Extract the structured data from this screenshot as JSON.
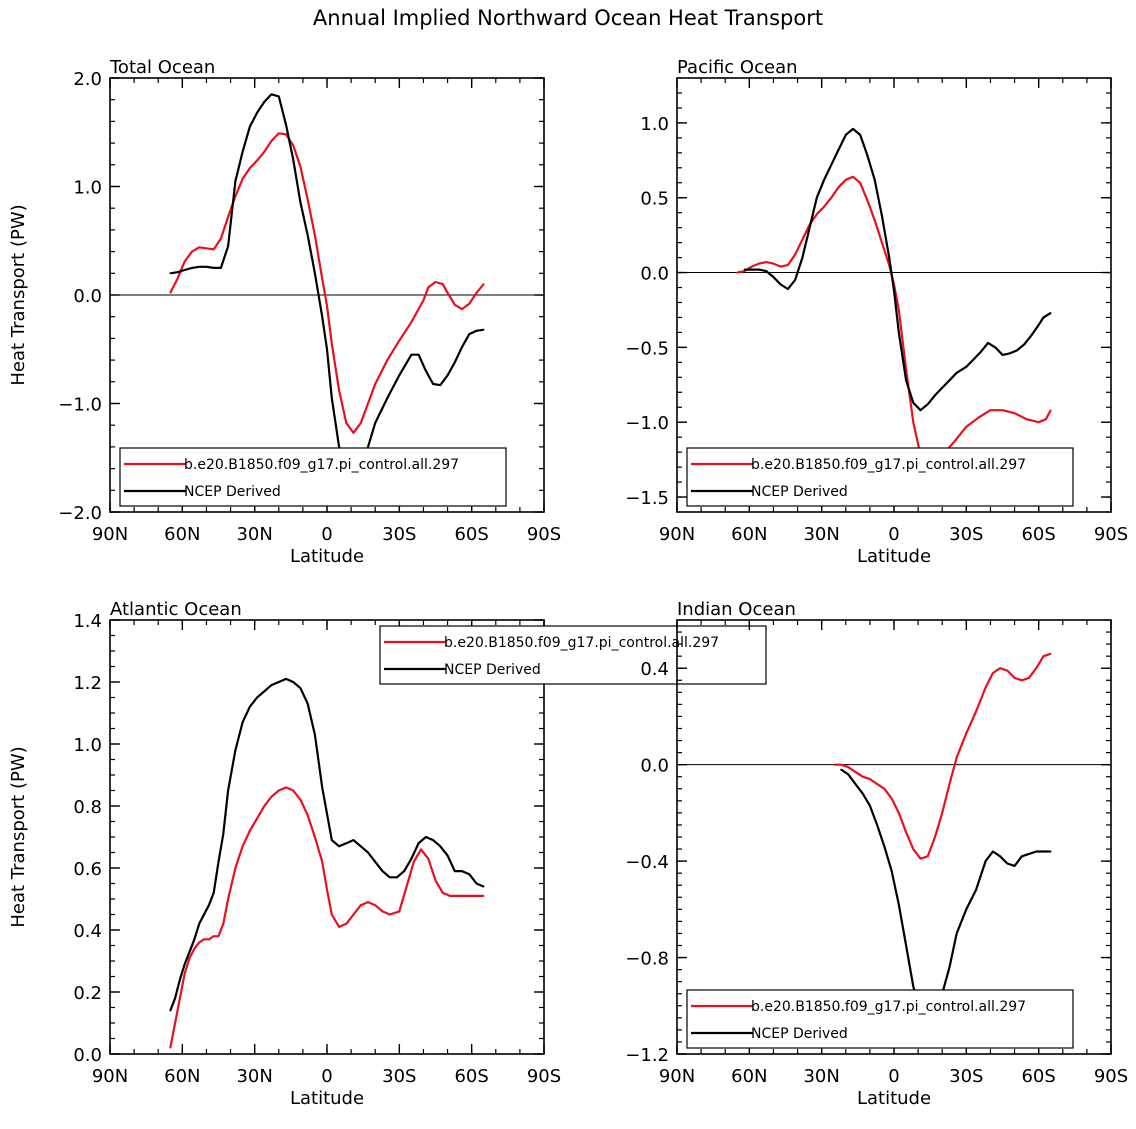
{
  "title": "Annual Implied Northward Ocean Heat Transport",
  "colors": {
    "model": "#e8101e",
    "ncep": "#000000",
    "frame": "#000000"
  },
  "chart_data": [
    {
      "type": "line",
      "panel_title": "Total Ocean",
      "xlabel": "Latitude",
      "ylabel": "Heat Transport (PW)",
      "xlim": [
        90,
        -90
      ],
      "ylim": [
        -2.0,
        2.0
      ],
      "xticks": [
        {
          "v": 90,
          "t": "90N"
        },
        {
          "v": 60,
          "t": "60N"
        },
        {
          "v": 30,
          "t": "30N"
        },
        {
          "v": 0,
          "t": "0"
        },
        {
          "v": -30,
          "t": "30S"
        },
        {
          "v": -60,
          "t": "60S"
        },
        {
          "v": -90,
          "t": "90S"
        }
      ],
      "yticks": [
        {
          "v": 2.0,
          "t": "2.0"
        },
        {
          "v": 1.0,
          "t": "1.0"
        },
        {
          "v": 0.0,
          "t": "0.0"
        },
        {
          "v": -1.0,
          "t": "−1.0"
        },
        {
          "v": -2.0,
          "t": "−2.0"
        }
      ],
      "yminor": 0.2,
      "zero_line": true,
      "legend": {
        "position": "bottom"
      },
      "series": [
        {
          "name": "b.e20.B1850.f09_g17.pi_control.all.297",
          "color": "#e8101e",
          "x": [
            65,
            62,
            59,
            56,
            53,
            50,
            47,
            44,
            41,
            38,
            35,
            32,
            29,
            26,
            23,
            20,
            17,
            14,
            11,
            8,
            5,
            2,
            0,
            -2,
            -5,
            -8,
            -11,
            -14,
            -17,
            -20,
            -25,
            -30,
            -35,
            -40,
            -42,
            -45,
            -48,
            -50,
            -53,
            -56,
            -59,
            -62,
            -65
          ],
          "y": [
            0.02,
            0.15,
            0.31,
            0.4,
            0.44,
            0.43,
            0.42,
            0.52,
            0.72,
            0.91,
            1.07,
            1.17,
            1.24,
            1.32,
            1.42,
            1.49,
            1.48,
            1.38,
            1.18,
            0.88,
            0.55,
            0.15,
            -0.1,
            -0.45,
            -0.88,
            -1.18,
            -1.27,
            -1.18,
            -1.0,
            -0.82,
            -0.6,
            -0.42,
            -0.25,
            -0.05,
            0.07,
            0.12,
            0.1,
            0.02,
            -0.09,
            -0.13,
            -0.08,
            0.02,
            0.1
          ]
        },
        {
          "name": "NCEP Derived",
          "color": "#000000",
          "x": [
            65,
            62,
            59,
            56,
            53,
            50,
            47,
            44,
            41,
            38,
            35,
            32,
            29,
            26,
            23,
            20,
            17,
            14,
            11,
            8,
            5,
            2,
            0,
            -2,
            -5,
            -8,
            -11,
            -14,
            -17,
            -20,
            -25,
            -30,
            -35,
            -38,
            -41,
            -44,
            -47,
            -50,
            -53,
            -56,
            -59,
            -62,
            -65
          ],
          "y": [
            0.2,
            0.21,
            0.23,
            0.25,
            0.26,
            0.26,
            0.25,
            0.25,
            0.45,
            1.05,
            1.32,
            1.55,
            1.68,
            1.78,
            1.85,
            1.83,
            1.57,
            1.25,
            0.85,
            0.55,
            0.2,
            -0.2,
            -0.5,
            -0.95,
            -1.4,
            -1.62,
            -1.66,
            -1.56,
            -1.4,
            -1.18,
            -0.95,
            -0.74,
            -0.55,
            -0.55,
            -0.7,
            -0.82,
            -0.83,
            -0.74,
            -0.62,
            -0.48,
            -0.36,
            -0.33,
            -0.32
          ]
        }
      ]
    },
    {
      "type": "line",
      "panel_title": "Pacific Ocean",
      "xlabel": "Latitude",
      "ylabel": "",
      "xlim": [
        90,
        -90
      ],
      "ylim": [
        -1.6,
        1.3
      ],
      "xticks": [
        {
          "v": 90,
          "t": "90N"
        },
        {
          "v": 60,
          "t": "60N"
        },
        {
          "v": 30,
          "t": "30N"
        },
        {
          "v": 0,
          "t": "0"
        },
        {
          "v": -30,
          "t": "30S"
        },
        {
          "v": -60,
          "t": "60S"
        },
        {
          "v": -90,
          "t": "90S"
        }
      ],
      "yticks": [
        {
          "v": 1.0,
          "t": "1.0"
        },
        {
          "v": 0.5,
          "t": "0.5"
        },
        {
          "v": 0.0,
          "t": "0.0"
        },
        {
          "v": -0.5,
          "t": "−0.5"
        },
        {
          "v": -1.0,
          "t": "−1.0"
        },
        {
          "v": -1.5,
          "t": "−1.5"
        }
      ],
      "yminor": 0.1,
      "zero_line": true,
      "legend": {
        "position": "bottom"
      },
      "series": [
        {
          "name": "b.e20.B1850.f09_g17.pi_control.all.297",
          "color": "#e8101e",
          "x": [
            65,
            62,
            59,
            56,
            53,
            50,
            47,
            44,
            41,
            38,
            35,
            32,
            29,
            26,
            23,
            20,
            17,
            14,
            11,
            8,
            5,
            2,
            0,
            -2,
            -5,
            -8,
            -11,
            -14,
            -17,
            -20,
            -25,
            -30,
            -35,
            -40,
            -45,
            -50,
            -55,
            -60,
            -63,
            -65
          ],
          "y": [
            0.0,
            0.01,
            0.04,
            0.06,
            0.07,
            0.06,
            0.04,
            0.05,
            0.12,
            0.22,
            0.32,
            0.39,
            0.44,
            0.5,
            0.57,
            0.62,
            0.64,
            0.6,
            0.48,
            0.35,
            0.2,
            0.05,
            -0.08,
            -0.25,
            -0.65,
            -1.0,
            -1.22,
            -1.3,
            -1.28,
            -1.22,
            -1.13,
            -1.03,
            -0.97,
            -0.92,
            -0.92,
            -0.94,
            -0.98,
            -1.0,
            -0.98,
            -0.92
          ]
        },
        {
          "name": "NCEP Derived",
          "color": "#000000",
          "x": [
            62,
            59,
            56,
            53,
            50,
            47,
            44,
            41,
            38,
            35,
            32,
            29,
            26,
            23,
            20,
            17,
            14,
            11,
            8,
            5,
            2,
            0,
            -2,
            -5,
            -8,
            -11,
            -14,
            -17,
            -20,
            -23,
            -26,
            -30,
            -33,
            -36,
            -39,
            -42,
            -45,
            -48,
            -51,
            -54,
            -57,
            -60,
            -62,
            -65
          ],
          "y": [
            0.02,
            0.02,
            0.02,
            0.01,
            -0.03,
            -0.08,
            -0.11,
            -0.05,
            0.1,
            0.3,
            0.5,
            0.62,
            0.72,
            0.82,
            0.92,
            0.96,
            0.92,
            0.78,
            0.62,
            0.38,
            0.1,
            -0.12,
            -0.4,
            -0.72,
            -0.87,
            -0.92,
            -0.88,
            -0.82,
            -0.77,
            -0.72,
            -0.67,
            -0.63,
            -0.58,
            -0.53,
            -0.47,
            -0.5,
            -0.55,
            -0.54,
            -0.52,
            -0.48,
            -0.42,
            -0.35,
            -0.3,
            -0.27
          ]
        }
      ]
    },
    {
      "type": "line",
      "panel_title": "Atlantic Ocean",
      "xlabel": "Latitude",
      "ylabel": "Heat Transport (PW)",
      "xlim": [
        90,
        -90
      ],
      "ylim": [
        0.0,
        1.4
      ],
      "xticks": [
        {
          "v": 90,
          "t": "90N"
        },
        {
          "v": 60,
          "t": "60N"
        },
        {
          "v": 30,
          "t": "30N"
        },
        {
          "v": 0,
          "t": "0"
        },
        {
          "v": -30,
          "t": "30S"
        },
        {
          "v": -60,
          "t": "60S"
        },
        {
          "v": -90,
          "t": "90S"
        }
      ],
      "yticks": [
        {
          "v": 1.4,
          "t": "1.4"
        },
        {
          "v": 1.2,
          "t": "1.2"
        },
        {
          "v": 1.0,
          "t": "1.0"
        },
        {
          "v": 0.8,
          "t": "0.8"
        },
        {
          "v": 0.6,
          "t": "0.6"
        },
        {
          "v": 0.4,
          "t": "0.4"
        },
        {
          "v": 0.2,
          "t": "0.2"
        },
        {
          "v": 0.0,
          "t": "0.0"
        }
      ],
      "yminor": 0.05,
      "zero_line": false,
      "legend": {
        "position": "top-center"
      },
      "series": [
        {
          "name": "b.e20.B1850.f09_g17.pi_control.all.297",
          "color": "#e8101e",
          "x": [
            65,
            63,
            61,
            59,
            57,
            55,
            53,
            51,
            49,
            47,
            45,
            43,
            41,
            38,
            35,
            32,
            29,
            26,
            23,
            20,
            17,
            14,
            11,
            8,
            5,
            2,
            0,
            -2,
            -5,
            -8,
            -11,
            -14,
            -17,
            -20,
            -23,
            -26,
            -30,
            -33,
            -36,
            -39,
            -42,
            -45,
            -48,
            -51,
            -54,
            -57,
            -60,
            -62,
            -65
          ],
          "y": [
            0.02,
            0.1,
            0.18,
            0.26,
            0.31,
            0.34,
            0.36,
            0.37,
            0.37,
            0.38,
            0.38,
            0.42,
            0.5,
            0.6,
            0.67,
            0.72,
            0.76,
            0.8,
            0.83,
            0.85,
            0.86,
            0.85,
            0.82,
            0.77,
            0.7,
            0.62,
            0.53,
            0.45,
            0.41,
            0.42,
            0.45,
            0.48,
            0.49,
            0.48,
            0.46,
            0.45,
            0.46,
            0.54,
            0.62,
            0.66,
            0.63,
            0.56,
            0.52,
            0.51,
            0.51,
            0.51,
            0.51,
            0.51,
            0.51
          ]
        },
        {
          "name": "NCEP Derived",
          "color": "#000000",
          "x": [
            65,
            63,
            61,
            59,
            57,
            55,
            53,
            51,
            49,
            47,
            45,
            43,
            41,
            38,
            35,
            32,
            29,
            26,
            23,
            20,
            17,
            14,
            11,
            8,
            5,
            2,
            -2,
            -5,
            -8,
            -11,
            -14,
            -17,
            -20,
            -23,
            -26,
            -29,
            -32,
            -35,
            -38,
            -41,
            -44,
            -47,
            -50,
            -53,
            -56,
            -59,
            -62,
            -65
          ],
          "y": [
            0.14,
            0.18,
            0.24,
            0.29,
            0.33,
            0.37,
            0.42,
            0.45,
            0.48,
            0.52,
            0.62,
            0.71,
            0.85,
            0.98,
            1.07,
            1.12,
            1.15,
            1.17,
            1.19,
            1.2,
            1.21,
            1.2,
            1.18,
            1.13,
            1.03,
            0.86,
            0.69,
            0.67,
            0.68,
            0.69,
            0.67,
            0.65,
            0.62,
            0.59,
            0.57,
            0.57,
            0.59,
            0.63,
            0.68,
            0.7,
            0.69,
            0.67,
            0.64,
            0.59,
            0.59,
            0.58,
            0.55,
            0.54
          ]
        }
      ]
    },
    {
      "type": "line",
      "panel_title": "Indian Ocean",
      "xlabel": "Latitude",
      "ylabel": "",
      "xlim": [
        90,
        -90
      ],
      "ylim": [
        -1.2,
        0.6
      ],
      "xticks": [
        {
          "v": 90,
          "t": "90N"
        },
        {
          "v": 60,
          "t": "60N"
        },
        {
          "v": 30,
          "t": "30N"
        },
        {
          "v": 0,
          "t": "0"
        },
        {
          "v": -30,
          "t": "30S"
        },
        {
          "v": -60,
          "t": "60S"
        },
        {
          "v": -90,
          "t": "90S"
        }
      ],
      "yticks": [
        {
          "v": 0.4,
          "t": "0.4"
        },
        {
          "v": 0.0,
          "t": "0.0"
        },
        {
          "v": -0.4,
          "t": "−0.4"
        },
        {
          "v": -0.8,
          "t": "−0.8"
        },
        {
          "v": -1.2,
          "t": "−1.2"
        }
      ],
      "yminor": 0.05,
      "zero_line": true,
      "legend": {
        "position": "bottom"
      },
      "series": [
        {
          "name": "b.e20.B1850.f09_g17.pi_control.all.297",
          "color": "#e8101e",
          "x": [
            25,
            22,
            19,
            16,
            13,
            10,
            7,
            4,
            1,
            -2,
            -5,
            -8,
            -11,
            -14,
            -17,
            -20,
            -23,
            -26,
            -30,
            -34,
            -38,
            -41,
            -44,
            -47,
            -50,
            -53,
            -56,
            -59,
            -62,
            -65
          ],
          "y": [
            0.0,
            0.0,
            -0.01,
            -0.03,
            -0.05,
            -0.06,
            -0.08,
            -0.1,
            -0.14,
            -0.2,
            -0.28,
            -0.35,
            -0.39,
            -0.38,
            -0.3,
            -0.2,
            -0.08,
            0.03,
            0.13,
            0.22,
            0.32,
            0.38,
            0.4,
            0.39,
            0.36,
            0.35,
            0.36,
            0.4,
            0.45,
            0.46
          ]
        },
        {
          "name": "NCEP Derived",
          "color": "#000000",
          "x": [
            22,
            19,
            16,
            13,
            10,
            7,
            4,
            1,
            -2,
            -5,
            -8,
            -11,
            -14,
            -17,
            -20,
            -23,
            -26,
            -30,
            -34,
            -38,
            -41,
            -44,
            -47,
            -50,
            -53,
            -56,
            -59,
            -62,
            -65
          ],
          "y": [
            -0.02,
            -0.04,
            -0.08,
            -0.12,
            -0.17,
            -0.25,
            -0.34,
            -0.44,
            -0.58,
            -0.75,
            -0.92,
            -1.02,
            -1.04,
            -1.01,
            -0.95,
            -0.84,
            -0.7,
            -0.6,
            -0.52,
            -0.4,
            -0.36,
            -0.38,
            -0.41,
            -0.42,
            -0.38,
            -0.37,
            -0.36,
            -0.36,
            -0.36
          ]
        }
      ]
    }
  ]
}
